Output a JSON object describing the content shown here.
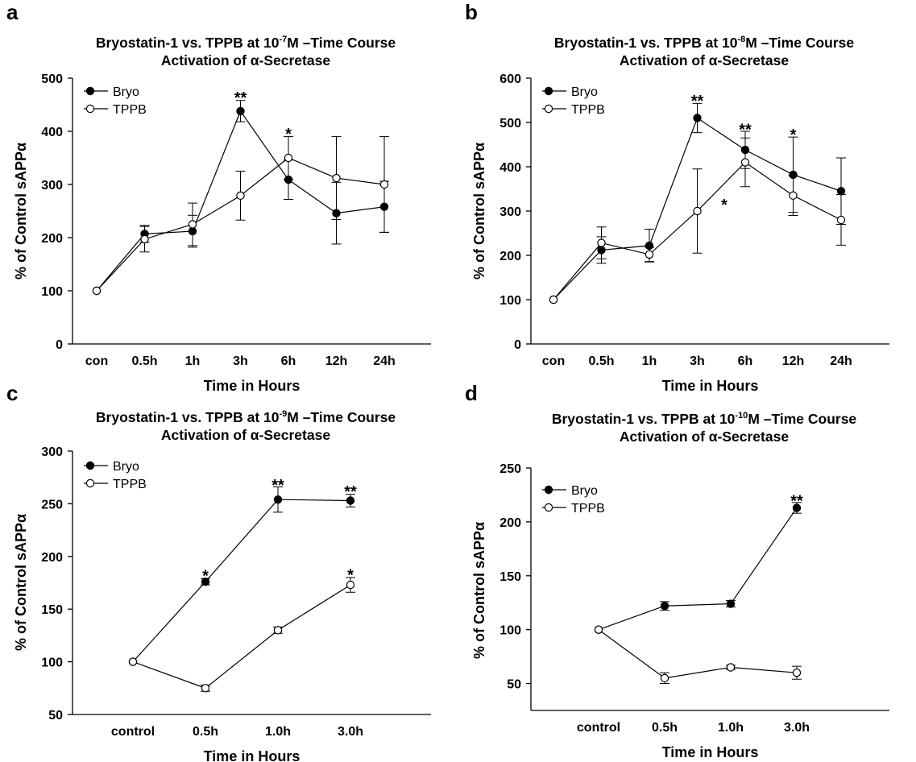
{
  "chart_data": [
    {
      "type": "line",
      "panel_label": "a",
      "title_pre": "Bryostatin-1 vs. TPPB at 10",
      "title_exp": "-7",
      "title_post": "M –Time Course",
      "subtitle": "Activation of  α-Secretase",
      "xlabel": "Time in Hours",
      "ylabel": "% of Control sAPPα",
      "ylim": [
        0,
        500
      ],
      "yticks": [
        0,
        100,
        200,
        300,
        400,
        500
      ],
      "categories": [
        "con",
        "0.5h",
        "1h",
        "3h",
        "6h",
        "12h",
        "24h"
      ],
      "legend_position": "top-left",
      "series": [
        {
          "name": "Bryo",
          "marker": "filled",
          "values": [
            100,
            207,
            212,
            438,
            309,
            246,
            258
          ],
          "errors": [
            0,
            16,
            30,
            20,
            37,
            58,
            48
          ]
        },
        {
          "name": "TPPB",
          "marker": "open",
          "values": [
            100,
            197,
            225,
            279,
            350,
            312,
            300
          ],
          "errors": [
            0,
            24,
            40,
            46,
            40,
            78,
            90
          ]
        }
      ],
      "annotations": [
        {
          "category": "3h",
          "text": "**",
          "value": 468
        },
        {
          "category": "6h",
          "text": "*",
          "value": 400
        }
      ]
    },
    {
      "type": "line",
      "panel_label": "b",
      "title_pre": "Bryostatin-1 vs. TPPB at 10",
      "title_exp": "-8",
      "title_post": "M –Time Course",
      "subtitle": "Activation of  α-Secretase",
      "xlabel": "Time in Hours",
      "ylabel": "% of Control sAPPα",
      "ylim": [
        0,
        600
      ],
      "yticks": [
        0,
        100,
        200,
        300,
        400,
        500,
        600
      ],
      "categories": [
        "con",
        "0.5h",
        "1h",
        "3h",
        "6h",
        "12h",
        "24h"
      ],
      "legend_position": "top-left",
      "series": [
        {
          "name": "Bryo",
          "marker": "filled",
          "values": [
            100,
            212,
            222,
            510,
            438,
            382,
            345
          ],
          "errors": [
            0,
            30,
            37,
            33,
            42,
            85,
            75
          ]
        },
        {
          "name": "TPPB",
          "marker": "open",
          "values": [
            100,
            228,
            202,
            300,
            410,
            335,
            280
          ],
          "errors": [
            0,
            36,
            16,
            95,
            55,
            45,
            57
          ]
        }
      ],
      "annotations": [
        {
          "category": "3h",
          "text": "**",
          "value": 555
        },
        {
          "category": "6h",
          "text": "**",
          "value": 490
        },
        {
          "category": "12h",
          "text": "*",
          "value": 478
        },
        {
          "category": "6h",
          "text": "*",
          "value": 320,
          "offset": -26
        }
      ]
    },
    {
      "type": "line",
      "panel_label": "c",
      "title_pre": "Bryostatin-1 vs. TPPB at 10",
      "title_exp": "-9",
      "title_post": "M –Time Course",
      "subtitle": "Activation of  α-Secretase",
      "xlabel": "Time in Hours",
      "ylabel": "% of Control sAPPα",
      "ylim": [
        50,
        300
      ],
      "yticks": [
        50,
        100,
        150,
        200,
        250,
        300
      ],
      "categories": [
        "control",
        "0.5h",
        "1.0h",
        "3.0h"
      ],
      "legend_position": "top-left",
      "series": [
        {
          "name": "Bryo",
          "marker": "filled",
          "values": [
            100,
            176,
            254,
            253
          ],
          "errors": [
            0,
            3,
            12,
            6
          ]
        },
        {
          "name": "TPPB",
          "marker": "open",
          "values": [
            100,
            75,
            130,
            173
          ],
          "errors": [
            0,
            3,
            3,
            7
          ]
        }
      ],
      "annotations": [
        {
          "category": "0.5h",
          "text": "*",
          "value": 184
        },
        {
          "category": "1.0h",
          "text": "**",
          "value": 270
        },
        {
          "category": "3.0h",
          "text": "**",
          "value": 264
        },
        {
          "category": "3.0h",
          "text": "*",
          "value": 185
        }
      ]
    },
    {
      "type": "line",
      "panel_label": "d",
      "title_pre": "Bryostatin-1 vs. TPPB at 10",
      "title_exp": "-10",
      "title_post": "M –Time Course",
      "subtitle": "Activation of  α-Secretase",
      "xlabel": "Time in Hours",
      "ylabel": "% of Control sAPPα",
      "ylim": [
        25,
        250
      ],
      "yticks": [
        50,
        100,
        150,
        200,
        250
      ],
      "categories": [
        "control",
        "0.5h",
        "1.0h",
        "3.0h"
      ],
      "legend_position": "top-left",
      "series": [
        {
          "name": "Bryo",
          "marker": "filled",
          "values": [
            100,
            122,
            124,
            213
          ],
          "errors": [
            0,
            4,
            3,
            5
          ]
        },
        {
          "name": "TPPB",
          "marker": "open",
          "values": [
            100,
            55,
            65,
            60
          ],
          "errors": [
            0,
            5,
            2,
            6
          ]
        }
      ],
      "annotations": [
        {
          "category": "3.0h",
          "text": "**",
          "value": 222
        }
      ]
    }
  ]
}
